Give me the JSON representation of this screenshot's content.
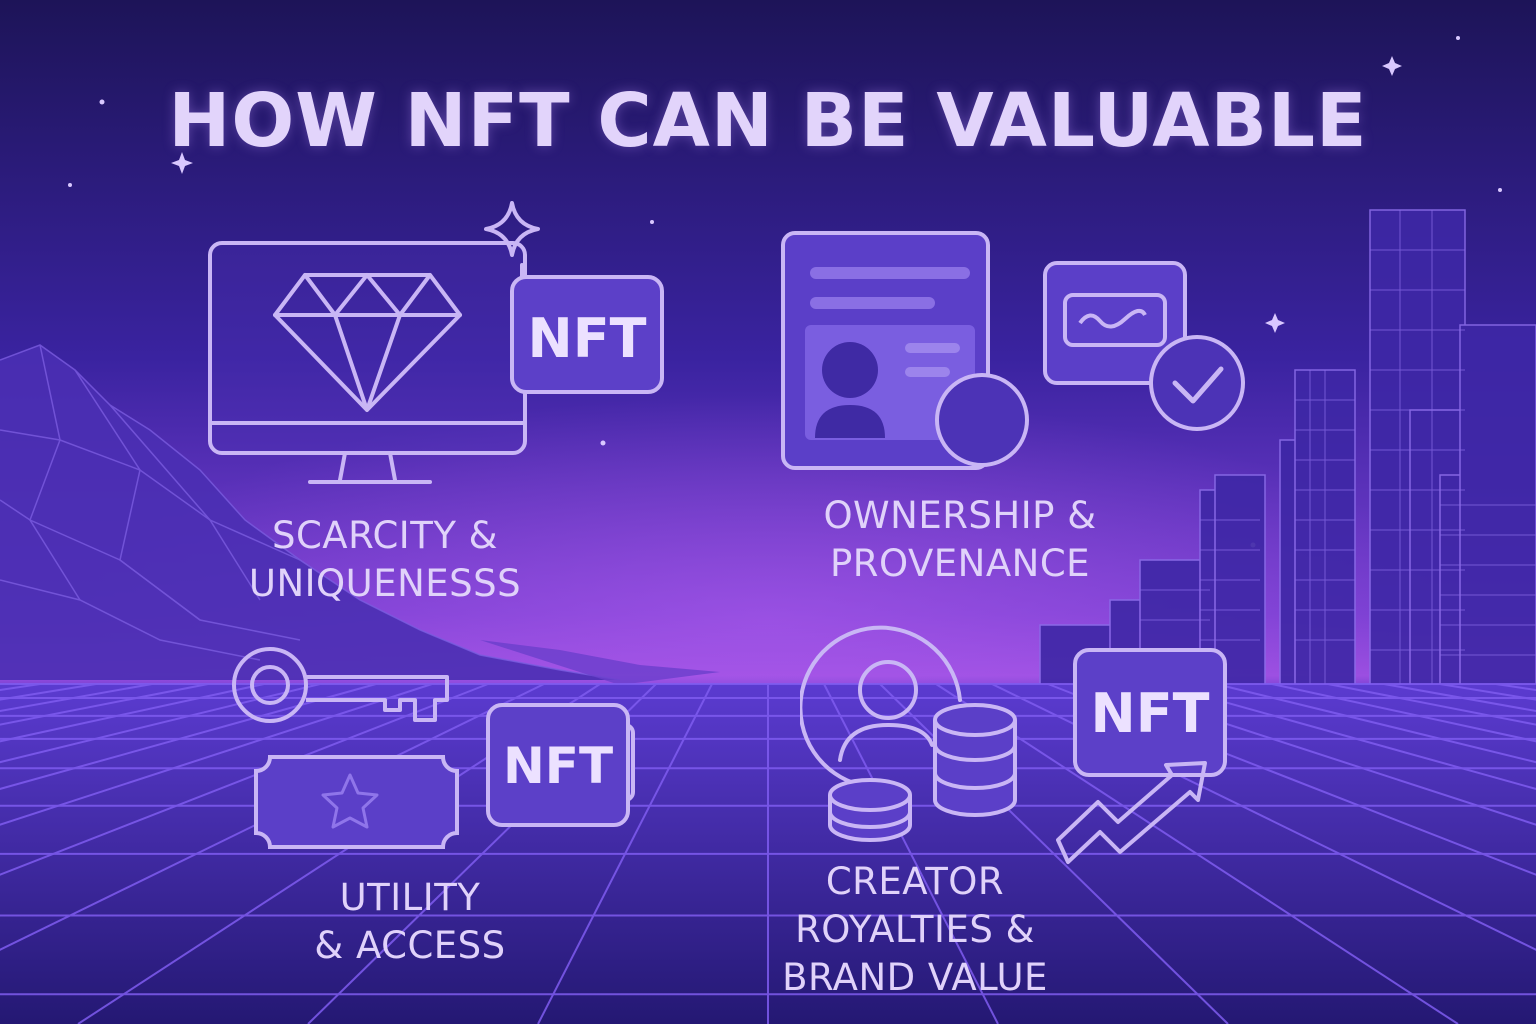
{
  "title": "HOW NFT CAN BE VALUABLE",
  "colors": {
    "line": "#c9b6f5",
    "panel": "#5a3fc4",
    "bg_top": "#1e145a",
    "bg_horizon": "#8c45d6",
    "grid": "#7c57e8"
  },
  "sections": [
    {
      "name": "scarcity",
      "lines": [
        "SCARCITY &",
        "UNIQUENESSS"
      ],
      "icons": [
        "monitor-icon",
        "diamond-icon",
        "sparkle-icon",
        "nft-badge-icon"
      ],
      "badge": "NFT"
    },
    {
      "name": "ownership",
      "lines": [
        "OWNERSHIP &",
        "PROVENANCE"
      ],
      "icons": [
        "document-icon",
        "profile-icon",
        "signature-card-icon",
        "check-circle-icon"
      ]
    },
    {
      "name": "utility",
      "lines": [
        "UTILITY",
        "& ACCESS"
      ],
      "icons": [
        "key-icon",
        "ticket-icon",
        "star-icon",
        "nft-badge-icon"
      ],
      "badge": "NFT"
    },
    {
      "name": "royalties",
      "lines": [
        "CREATOR",
        "ROYALTIES &",
        "BRAND VALUE"
      ],
      "icons": [
        "creator-icon",
        "coin-stack-icon",
        "nft-badge-icon",
        "trend-arrow-icon"
      ],
      "badge": "NFT"
    }
  ]
}
